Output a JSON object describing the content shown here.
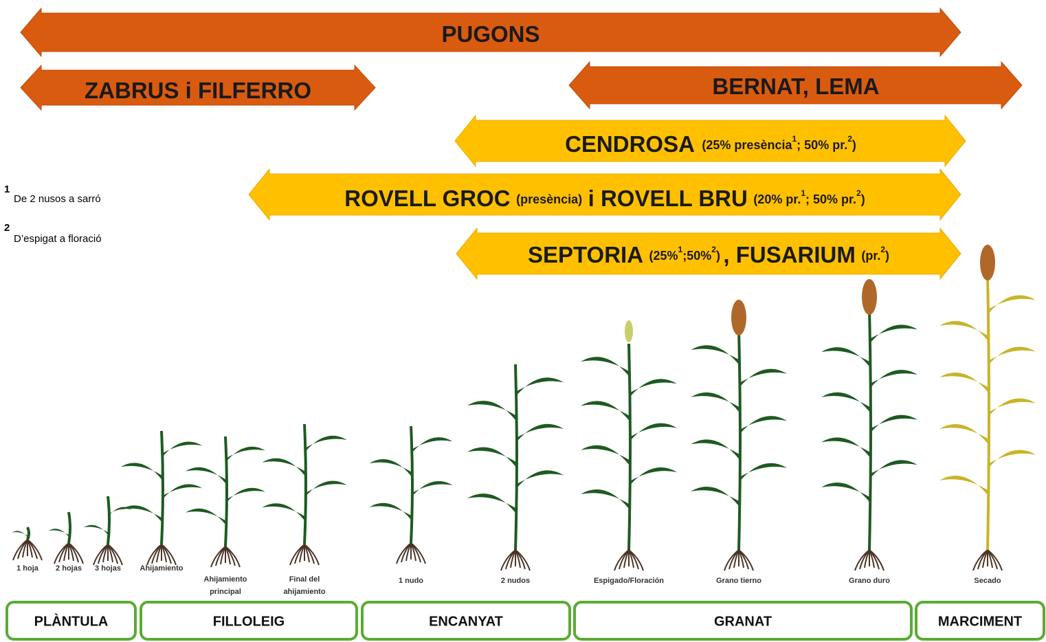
{
  "arrows": [
    {
      "parts": [
        "PUGONS"
      ]
    },
    {
      "parts": [
        "ZABRUS i FILFERRO"
      ]
    },
    {
      "parts": [
        "BERNAT, LEMA"
      ]
    },
    {
      "parts": [
        "CENDROSA",
        "(25% presència",
        "1",
        "; 50% pr.",
        "2",
        ")"
      ]
    },
    {
      "parts": [
        "ROVELL GROC",
        "(presència)",
        "i ROVELL BRU",
        "(20% pr.",
        "1",
        "; 50% pr.",
        "2",
        ")"
      ]
    },
    {
      "parts": [
        "SEPTORIA",
        "(25%",
        "1",
        ";50%",
        "2",
        ")",
        ", FUSARIUM",
        "(pr.",
        "2",
        ")"
      ]
    }
  ],
  "footnotes": [
    {
      "number": "1",
      "text": "De 2 nusos a sarró"
    },
    {
      "number": "2",
      "text": "D’espigat a floració"
    }
  ],
  "plants": [
    [
      "1 hoja"
    ],
    [
      "2 hojas"
    ],
    [
      "3 hojas"
    ],
    [
      "Ahijamiento"
    ],
    [
      "Ahijamiento",
      "principal"
    ],
    [
      "Final del",
      "ahijamiento"
    ],
    [
      "1 nudo"
    ],
    [
      "2 nudos"
    ],
    [
      "Espigado/Floración"
    ],
    [
      "Grano tierno"
    ],
    [
      "Grano duro"
    ],
    [
      "Secado"
    ]
  ],
  "stages": [
    "PLÀNTULA",
    "FILLOLEIG",
    "ENCANYAT",
    "GRANAT",
    "MARCIMENT"
  ]
}
